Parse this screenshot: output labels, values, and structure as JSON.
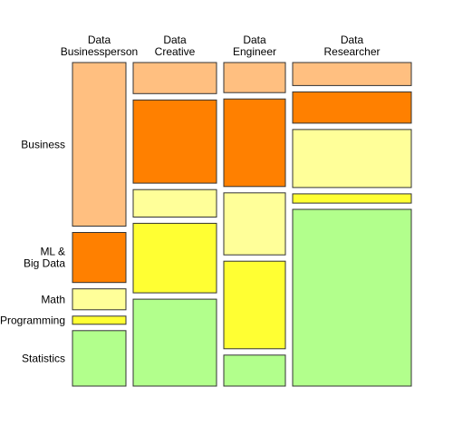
{
  "chart_data": {
    "type": "mosaic",
    "title": "",
    "columns": [
      {
        "label": "Data\nBusinessperson",
        "width": 59
      },
      {
        "label": "Data\nCreative",
        "width": 92
      },
      {
        "label": "Data\nEngineer",
        "width": 68
      },
      {
        "label": "Data\nResearcher",
        "width": 131
      }
    ],
    "rows": [
      {
        "label": "Business",
        "color": "#FFBF80"
      },
      {
        "label": "ML &\nBig Data",
        "color": "#FF8000"
      },
      {
        "label": "Math",
        "color": "#FFFF99"
      },
      {
        "label": "Programming",
        "color": "#FFFF33"
      },
      {
        "label": "Statistics",
        "color": "#B2FF8C"
      }
    ],
    "proportions": [
      [
        180,
        55,
        23,
        9,
        61
      ],
      [
        34,
        91,
        30,
        76,
        95
      ],
      [
        33,
        96,
        68,
        96,
        34
      ],
      [
        25,
        34,
        63,
        10,
        192
      ]
    ],
    "row_label_groups": "left"
  }
}
